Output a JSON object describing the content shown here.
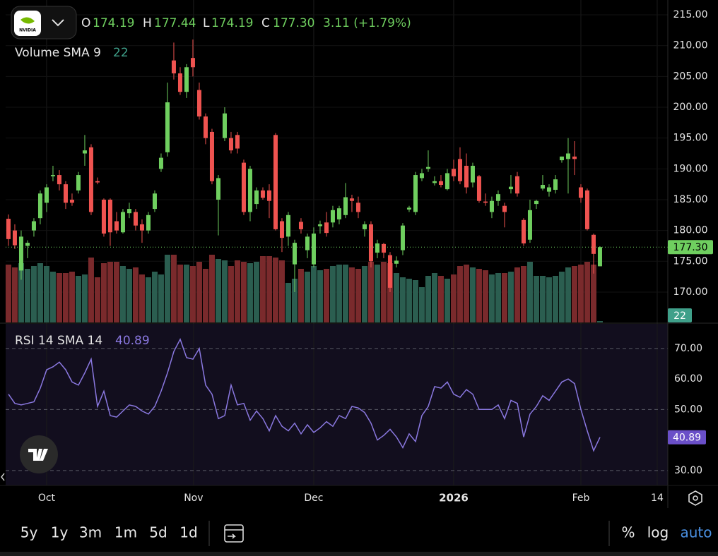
{
  "header": {
    "logo": "NVIDIA",
    "o_label": "O",
    "o": "174.19",
    "h_label": "H",
    "h": "177.44",
    "l_label": "L",
    "l": "174.19",
    "c_label": "C",
    "c": "177.30",
    "change": "3.11 (+1.79%)"
  },
  "chart_data": [
    {
      "type": "candlestick",
      "legend": "Volume SMA 9",
      "volume_sma": 22,
      "up_color": "#6fcf5f",
      "down_color": "#ef5350",
      "volume_up_color": "#2b5e50",
      "volume_down_color": "#7a2a2c",
      "xlim": [
        -0.44,
        103.67
      ],
      "xticks": [
        {
          "value": 6,
          "label": "Oct"
        },
        {
          "value": 29.1,
          "label": "Nov"
        },
        {
          "value": 48,
          "label": "Dec"
        },
        {
          "value": 70,
          "label": "2026"
        },
        {
          "value": 90,
          "label": "Feb"
        },
        {
          "value": 102,
          "label": "14"
        }
      ],
      "ylim": [
        165.07,
        217.41
      ],
      "yticks": [
        {
          "value": 170,
          "label": "170.00"
        },
        {
          "value": 175,
          "label": "175.00"
        },
        {
          "value": 180,
          "label": "180.00"
        },
        {
          "value": 185,
          "label": "185.00"
        },
        {
          "value": 190,
          "label": "190.00"
        },
        {
          "value": 195,
          "label": "195.00"
        },
        {
          "value": 200,
          "label": "200.00"
        },
        {
          "value": 205,
          "label": "205.00"
        },
        {
          "value": 210,
          "label": "210.00"
        },
        {
          "value": 215,
          "label": "215.00"
        }
      ],
      "volume_lim": [
        0,
        500
      ],
      "grid": true,
      "ohlc": [
        [
          181.9,
          182.6,
          177.5,
          178.6
        ],
        [
          180.0,
          181.0,
          177.0,
          177.6
        ],
        [
          173.5,
          180.0,
          172.0,
          179.0
        ],
        [
          177.5,
          178.4,
          175.5,
          178.0
        ],
        [
          180.0,
          182.0,
          179.0,
          181.5
        ],
        [
          182.0,
          186.5,
          181.0,
          186.0
        ],
        [
          184.5,
          187.5,
          183.0,
          187.0
        ],
        [
          188.8,
          190.5,
          188.0,
          189.0
        ],
        [
          189.0,
          189.8,
          186.5,
          187.5
        ],
        [
          187.5,
          188.0,
          183.5,
          184.5
        ],
        [
          185.0,
          186.0,
          184.0,
          184.5
        ],
        [
          186.5,
          189.5,
          186.0,
          189.0
        ],
        [
          192.5,
          195.5,
          190.5,
          193.0
        ],
        [
          193.5,
          194.0,
          182.5,
          183.0
        ],
        [
          188.0,
          188.6,
          187.5,
          187.8
        ],
        [
          185.0,
          185.2,
          179.0,
          179.5
        ],
        [
          185.0,
          185.2,
          177.5,
          179.7
        ],
        [
          181.5,
          183.0,
          179.5,
          180.0
        ],
        [
          179.7,
          183.5,
          179.5,
          183.0
        ],
        [
          182.8,
          184.5,
          182.0,
          183.5
        ],
        [
          183.0,
          183.5,
          180.0,
          180.8
        ],
        [
          181.0,
          181.8,
          178.0,
          180.0
        ],
        [
          180.0,
          183.0,
          179.5,
          182.5
        ],
        [
          183.5,
          186.5,
          183.0,
          186.0
        ],
        [
          190.0,
          192.5,
          189.5,
          191.8
        ],
        [
          192.7,
          204.0,
          192.0,
          200.8
        ],
        [
          207.6,
          210.5,
          204.5,
          205.5
        ],
        [
          205.5,
          206.5,
          202.0,
          202.5
        ],
        [
          202.5,
          207.0,
          201.5,
          206.5
        ],
        [
          208.0,
          211.0,
          205.0,
          206.5
        ],
        [
          202.8,
          204.0,
          198.0,
          198.5
        ],
        [
          198.5,
          199.0,
          194.0,
          195.0
        ],
        [
          196.0,
          196.5,
          187.5,
          188.0
        ],
        [
          185.0,
          189.0,
          179.2,
          188.5
        ],
        [
          195.0,
          200.0,
          194.5,
          199.0
        ],
        [
          195.0,
          196.0,
          192.5,
          193.0
        ],
        [
          195.5,
          196.0,
          192.5,
          193.3
        ],
        [
          191.0,
          191.5,
          182.5,
          183.0
        ],
        [
          183.0,
          190.5,
          181.5,
          190.0
        ],
        [
          184.3,
          187.0,
          183.5,
          186.5
        ],
        [
          186.5,
          187.0,
          185.0,
          185.3
        ],
        [
          186.5,
          187.5,
          182.0,
          184.8
        ],
        [
          195.5,
          195.8,
          180.0,
          180.2
        ],
        [
          181.5,
          182.0,
          176.5,
          178.8
        ],
        [
          179.0,
          183.0,
          177.5,
          182.5
        ],
        [
          174.5,
          178.5,
          170.0,
          178.0
        ],
        [
          181.4,
          182.0,
          179.5,
          180.2
        ],
        [
          176.8,
          179.5,
          175.5,
          179.0
        ],
        [
          174.5,
          180.5,
          174.0,
          179.5
        ],
        [
          180.7,
          181.6,
          179.5,
          181.0
        ],
        [
          181.3,
          183.0,
          179.0,
          179.6
        ],
        [
          181.3,
          184.0,
          180.5,
          183.3
        ],
        [
          181.8,
          184.0,
          181.0,
          183.6
        ],
        [
          182.5,
          187.7,
          182.0,
          185.4
        ],
        [
          185.2,
          185.8,
          183.0,
          184.8
        ],
        [
          184.5,
          185.5,
          182.0,
          183.0
        ],
        [
          180.2,
          181.5,
          179.0,
          181.0
        ],
        [
          181.0,
          181.5,
          174.0,
          175.0
        ],
        [
          176.4,
          178.5,
          175.5,
          177.9
        ],
        [
          177.8,
          178.0,
          175.5,
          176.4
        ],
        [
          176.0,
          176.5,
          170.0,
          170.7
        ],
        [
          174.6,
          175.8,
          174.0,
          175.1
        ],
        [
          176.8,
          181.2,
          176.0,
          180.8
        ],
        [
          183.4,
          184.0,
          183.0,
          183.7
        ],
        [
          183.0,
          189.5,
          182.5,
          189.0
        ],
        [
          188.5,
          190.0,
          188.0,
          189.3
        ],
        [
          190.0,
          193.0,
          189.5,
          190.3
        ],
        [
          187.7,
          188.8,
          187.3,
          188.0
        ],
        [
          188.0,
          189.0,
          187.0,
          187.4
        ],
        [
          186.7,
          190.0,
          186.5,
          189.3
        ],
        [
          190.0,
          191.5,
          188.0,
          188.8
        ],
        [
          191.6,
          193.5,
          187.5,
          188.0
        ],
        [
          190.5,
          192.5,
          186.0,
          187.0
        ],
        [
          187.8,
          191.0,
          187.0,
          190.5
        ],
        [
          188.8,
          189.0,
          184.5,
          184.8
        ],
        [
          184.7,
          186.0,
          184.0,
          184.5
        ],
        [
          183.0,
          185.5,
          182.0,
          184.8
        ],
        [
          184.8,
          186.5,
          184.0,
          185.9
        ],
        [
          184.0,
          184.5,
          180.5,
          183.0
        ],
        [
          186.7,
          189.0,
          186.0,
          187.1
        ],
        [
          188.8,
          189.5,
          185.5,
          186.0
        ],
        [
          181.7,
          182.0,
          177.5,
          177.9
        ],
        [
          178.5,
          185.0,
          178.0,
          183.3
        ],
        [
          184.3,
          185.0,
          183.5,
          184.8
        ],
        [
          186.8,
          189.0,
          186.5,
          187.4
        ],
        [
          186.3,
          187.5,
          185.5,
          187.0
        ],
        [
          186.6,
          189.0,
          186.0,
          188.3
        ],
        [
          191.4,
          192.0,
          191.0,
          192.0
        ],
        [
          191.6,
          195.0,
          186.0,
          192.5
        ],
        [
          192.0,
          194.5,
          189.0,
          191.6
        ],
        [
          187.0,
          187.5,
          184.5,
          185.3
        ],
        [
          186.5,
          186.8,
          180.0,
          180.2
        ],
        [
          179.3,
          179.5,
          173.0,
          176.2
        ],
        [
          174.19,
          177.44,
          174.19,
          177.3
        ]
      ],
      "volume": [
        205,
        195,
        210,
        190,
        200,
        210,
        200,
        180,
        175,
        175,
        180,
        165,
        170,
        230,
        160,
        210,
        215,
        215,
        200,
        190,
        195,
        170,
        160,
        180,
        170,
        240,
        240,
        205,
        205,
        200,
        215,
        190,
        240,
        225,
        220,
        200,
        220,
        215,
        210,
        215,
        235,
        235,
        230,
        220,
        140,
        155,
        190,
        180,
        200,
        185,
        190,
        200,
        205,
        205,
        195,
        190,
        200,
        215,
        205,
        215,
        210,
        175,
        160,
        155,
        150,
        125,
        165,
        175,
        165,
        155,
        170,
        200,
        205,
        195,
        190,
        185,
        170,
        175,
        175,
        180,
        195,
        200,
        215,
        165,
        165,
        160,
        165,
        180,
        195,
        200,
        205,
        215,
        205,
        5
      ]
    },
    {
      "type": "line",
      "title": "RSI 14 SMA 14",
      "color": "#8a78e0",
      "background": "#120e1e",
      "ylim": [
        25.1,
        78.3
      ],
      "yticks": [
        {
          "value": 30,
          "label": "30.00"
        },
        {
          "value": 50,
          "label": "50.00"
        },
        {
          "value": 60,
          "label": "60.00"
        },
        {
          "value": 70,
          "label": "70.00"
        }
      ],
      "levels": [
        70,
        50,
        30
      ],
      "values": [
        55,
        52,
        51.5,
        52,
        52.5,
        57,
        63,
        64,
        65.5,
        63,
        59,
        58,
        62,
        66.5,
        51,
        56,
        48,
        47.5,
        49.5,
        51.5,
        51,
        49.5,
        48.5,
        51,
        56,
        62,
        69,
        73,
        67,
        66.5,
        70,
        58,
        55,
        47,
        48,
        58,
        51.5,
        52,
        46.5,
        49.5,
        47,
        43,
        48,
        44.5,
        43,
        45.5,
        42,
        45,
        42.5,
        44,
        46,
        44.5,
        48,
        47,
        51,
        50.5,
        49,
        45.5,
        40,
        41.5,
        43.5,
        41,
        37.5,
        42,
        39.5,
        48,
        51,
        57.5,
        57,
        59,
        55,
        54,
        56.5,
        55,
        50,
        50,
        50,
        51.5,
        47,
        53,
        52,
        41,
        48.5,
        51,
        54.5,
        53,
        56,
        59,
        60,
        58.5,
        50,
        43,
        36.5,
        40.89
      ]
    }
  ],
  "toolbar": {
    "ranges": [
      "5y",
      "1y",
      "3m",
      "1m",
      "5d",
      "1d"
    ],
    "percent": "%",
    "log": "log",
    "auto": "auto"
  }
}
